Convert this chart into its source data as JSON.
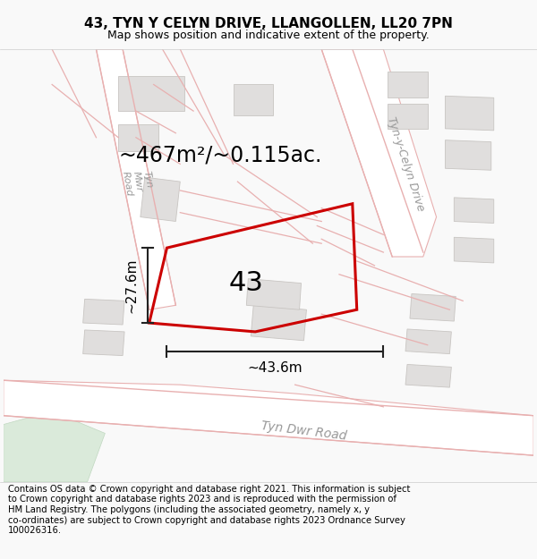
{
  "title": "43, TYN Y CELYN DRIVE, LLANGOLLEN, LL20 7PN",
  "subtitle": "Map shows position and indicative extent of the property.",
  "footer": "Contains OS data © Crown copyright and database right 2021. This information is subject to Crown copyright and database rights 2023 and is reproduced with the permission of HM Land Registry. The polygons (including the associated geometry, namely x, y co-ordinates) are subject to Crown copyright and database rights 2023 Ordnance Survey 100026316.",
  "area_label": "~467m²/~0.115ac.",
  "width_label": "~43.6m",
  "height_label": "~27.6m",
  "plot_number": "43",
  "bg": "#f9f9f9",
  "map_bg": "#f5f3f0",
  "road_fill": "#ede8e3",
  "building_color": "#e0dedd",
  "building_edge": "#c8c5c2",
  "plot_color": "#cc0000",
  "road_line": "#e8b0b0",
  "green_color": "#daeada",
  "green_edge": "#c0d8c0",
  "dim_line_color": "#222222",
  "road_label_color": "#999999",
  "title_fontsize": 11,
  "subtitle_fontsize": 9,
  "footer_fontsize": 7.2,
  "area_fontsize": 17,
  "number_fontsize": 22,
  "dim_fontsize": 11,
  "road_label_fontsize": 10
}
